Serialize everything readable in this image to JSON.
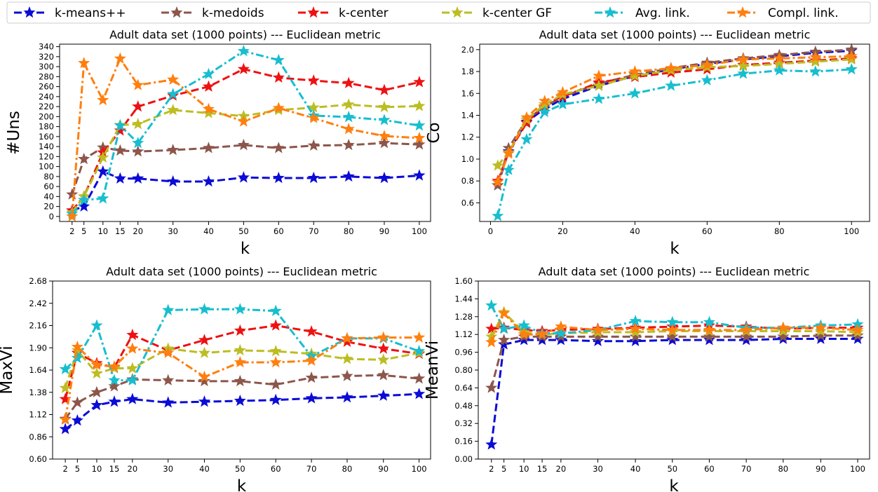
{
  "legend": {
    "placement": "top",
    "items": [
      {
        "label": "k-means++",
        "color": "#0b0bd6",
        "dash": "dashed"
      },
      {
        "label": "k-medoids",
        "color": "#8c564b",
        "dash": "dashed"
      },
      {
        "label": "k-center",
        "color": "#ee1111",
        "dash": "dashed"
      },
      {
        "label": "k-center GF",
        "color": "#bcbd22",
        "dash": "dashed"
      },
      {
        "label": "Avg. link.",
        "color": "#17becf",
        "dash": "dashdot"
      },
      {
        "label": "Compl. link.",
        "color": "#ff7f0e",
        "dash": "dashdot"
      }
    ]
  },
  "chart_data": [
    {
      "type": "line",
      "title": "Adult data set (1000 points) --- Euclidean metric",
      "xlabel": "k",
      "ylabel": "#Uns",
      "x": [
        2,
        5,
        10,
        15,
        20,
        30,
        40,
        50,
        60,
        70,
        80,
        90,
        100
      ],
      "x_ticks": [
        2,
        5,
        10,
        15,
        20,
        30,
        40,
        50,
        60,
        70,
        80,
        90,
        100
      ],
      "x_scale": "categorical",
      "y_ticks": [
        "0",
        "20",
        "40",
        "60",
        "80",
        "100",
        "120",
        "140",
        "160",
        "180",
        "200",
        "220",
        "240",
        "260",
        "280",
        "300",
        "320",
        "340"
      ],
      "ylim": [
        -10,
        345
      ],
      "grid": false,
      "series": [
        {
          "name": "k-means++",
          "values": [
            12,
            20,
            90,
            76,
            76,
            70,
            70,
            78,
            77,
            77,
            80,
            77,
            82
          ]
        },
        {
          "name": "k-medoids",
          "values": [
            44,
            115,
            138,
            132,
            130,
            133,
            137,
            143,
            137,
            142,
            143,
            147,
            144
          ]
        },
        {
          "name": "k-center",
          "values": [
            12,
            40,
            128,
            172,
            220,
            242,
            260,
            295,
            278,
            272,
            267,
            253,
            269
          ]
        },
        {
          "name": "k-center GF",
          "values": [
            8,
            40,
            118,
            183,
            185,
            213,
            207,
            201,
            213,
            218,
            224,
            219,
            221
          ]
        },
        {
          "name": "Avg. link.",
          "values": [
            5,
            33,
            36,
            182,
            147,
            245,
            285,
            331,
            313,
            202,
            199,
            193,
            182
          ]
        },
        {
          "name": "Compl. link.",
          "values": [
            0,
            307,
            233,
            316,
            263,
            274,
            215,
            190,
            217,
            197,
            175,
            161,
            157
          ]
        }
      ]
    },
    {
      "type": "line",
      "title": "Adult data set (1000 points) --- Euclidean metric",
      "xlabel": "k",
      "ylabel": "Co",
      "x": [
        2,
        5,
        10,
        15,
        20,
        30,
        40,
        50,
        60,
        70,
        80,
        90,
        100
      ],
      "x_ticks": [
        0,
        20,
        40,
        60,
        80,
        100
      ],
      "x_scale": "linear",
      "xlim": [
        -3,
        105
      ],
      "y_ticks": [
        "0.6",
        "0.8",
        "1.0",
        "1.2",
        "1.4",
        "1.6",
        "1.8",
        "2.0"
      ],
      "ylim": [
        0.43,
        2.05
      ],
      "grid": false,
      "series": [
        {
          "name": "k-means++",
          "values": [
            0.76,
            1.07,
            1.34,
            1.46,
            1.55,
            1.67,
            1.76,
            1.82,
            1.87,
            1.91,
            1.94,
            1.97,
            1.99
          ]
        },
        {
          "name": "k-medoids",
          "values": [
            0.76,
            1.1,
            1.36,
            1.48,
            1.57,
            1.69,
            1.77,
            1.83,
            1.88,
            1.92,
            1.95,
            1.98,
            2.0
          ]
        },
        {
          "name": "k-center",
          "values": [
            0.8,
            1.06,
            1.33,
            1.5,
            1.57,
            1.7,
            1.75,
            1.79,
            1.82,
            1.86,
            1.88,
            1.9,
            1.92
          ]
        },
        {
          "name": "k-center GF",
          "values": [
            0.94,
            1.06,
            1.36,
            1.5,
            1.59,
            1.67,
            1.76,
            1.81,
            1.84,
            1.85,
            1.87,
            1.89,
            1.91
          ]
        },
        {
          "name": "Avg. link.",
          "values": [
            0.48,
            0.9,
            1.18,
            1.43,
            1.5,
            1.55,
            1.6,
            1.67,
            1.72,
            1.78,
            1.81,
            1.8,
            1.82
          ]
        },
        {
          "name": "Compl. link.",
          "values": [
            0.79,
            1.05,
            1.38,
            1.53,
            1.61,
            1.76,
            1.8,
            1.83,
            1.86,
            1.91,
            1.92,
            1.93,
            1.94
          ]
        }
      ]
    },
    {
      "type": "line",
      "title": "Adult data set (1000 points) --- Euclidean metric",
      "xlabel": "k",
      "ylabel": "MaxVi",
      "x": [
        2,
        5,
        10,
        15,
        20,
        30,
        40,
        50,
        60,
        70,
        80,
        90,
        100
      ],
      "x_ticks": [
        2,
        5,
        10,
        15,
        20,
        30,
        40,
        50,
        60,
        70,
        80,
        90,
        100
      ],
      "x_scale": "categorical",
      "y_ticks": [
        "0.60",
        "0.86",
        "1.12",
        "1.38",
        "1.64",
        "1.90",
        "2.16",
        "2.42",
        "2.68"
      ],
      "ylim": [
        0.6,
        2.68
      ],
      "grid": false,
      "series": [
        {
          "name": "k-means++",
          "values": [
            0.95,
            1.05,
            1.23,
            1.27,
            1.3,
            1.26,
            1.27,
            1.28,
            1.29,
            1.31,
            1.32,
            1.34,
            1.36
          ]
        },
        {
          "name": "k-medoids",
          "values": [
            1.07,
            1.26,
            1.38,
            1.45,
            1.53,
            1.52,
            1.51,
            1.51,
            1.47,
            1.55,
            1.57,
            1.58,
            1.54
          ]
        },
        {
          "name": "k-center",
          "values": [
            1.3,
            1.84,
            1.72,
            1.67,
            2.05,
            1.87,
            1.99,
            2.1,
            2.16,
            2.09,
            1.97,
            1.89,
            1.83
          ]
        },
        {
          "name": "k-center GF",
          "values": [
            1.43,
            1.87,
            1.6,
            1.66,
            1.66,
            1.89,
            1.84,
            1.87,
            1.86,
            1.83,
            1.77,
            1.76,
            1.84
          ]
        },
        {
          "name": "Avg. link.",
          "values": [
            1.65,
            1.78,
            2.16,
            1.52,
            1.52,
            2.34,
            2.35,
            2.35,
            2.33,
            1.8,
            2.01,
            2.01,
            1.86
          ]
        },
        {
          "name": "Compl. link.",
          "values": [
            1.06,
            1.91,
            1.7,
            1.68,
            1.89,
            1.84,
            1.56,
            1.73,
            1.73,
            1.75,
            2.01,
            2.02,
            2.02
          ]
        }
      ]
    },
    {
      "type": "line",
      "title": "Adult data set (1000 points) --- Euclidean metric",
      "xlabel": "k",
      "ylabel": "MeanVi",
      "x": [
        2,
        5,
        10,
        15,
        20,
        30,
        40,
        50,
        60,
        70,
        80,
        90,
        100
      ],
      "x_ticks": [
        2,
        5,
        10,
        15,
        20,
        30,
        40,
        50,
        60,
        70,
        80,
        90,
        100
      ],
      "x_scale": "categorical",
      "y_ticks": [
        "0.00",
        "0.16",
        "0.32",
        "0.48",
        "0.64",
        "0.80",
        "0.96",
        "1.12",
        "1.28",
        "1.44",
        "1.60"
      ],
      "ylim": [
        0.0,
        1.6
      ],
      "grid": false,
      "series": [
        {
          "name": "k-means++",
          "values": [
            0.13,
            1.03,
            1.07,
            1.07,
            1.07,
            1.06,
            1.06,
            1.07,
            1.07,
            1.07,
            1.08,
            1.08,
            1.08
          ]
        },
        {
          "name": "k-medoids",
          "values": [
            0.64,
            1.07,
            1.1,
            1.1,
            1.1,
            1.1,
            1.1,
            1.1,
            1.1,
            1.1,
            1.1,
            1.11,
            1.11
          ]
        },
        {
          "name": "k-center",
          "values": [
            1.17,
            1.18,
            1.16,
            1.15,
            1.16,
            1.17,
            1.18,
            1.19,
            1.2,
            1.19,
            1.17,
            1.18,
            1.18
          ]
        },
        {
          "name": "k-center GF",
          "values": [
            1.1,
            1.32,
            1.14,
            1.12,
            1.13,
            1.14,
            1.14,
            1.15,
            1.15,
            1.15,
            1.15,
            1.15,
            1.14
          ]
        },
        {
          "name": "Avg. link.",
          "values": [
            1.38,
            1.17,
            1.2,
            1.13,
            1.13,
            1.16,
            1.24,
            1.23,
            1.23,
            1.18,
            1.18,
            1.2,
            1.21
          ]
        },
        {
          "name": "Compl. link.",
          "values": [
            1.05,
            1.31,
            1.12,
            1.12,
            1.19,
            1.16,
            1.17,
            1.16,
            1.16,
            1.16,
            1.18,
            1.18,
            1.16
          ]
        }
      ]
    }
  ]
}
